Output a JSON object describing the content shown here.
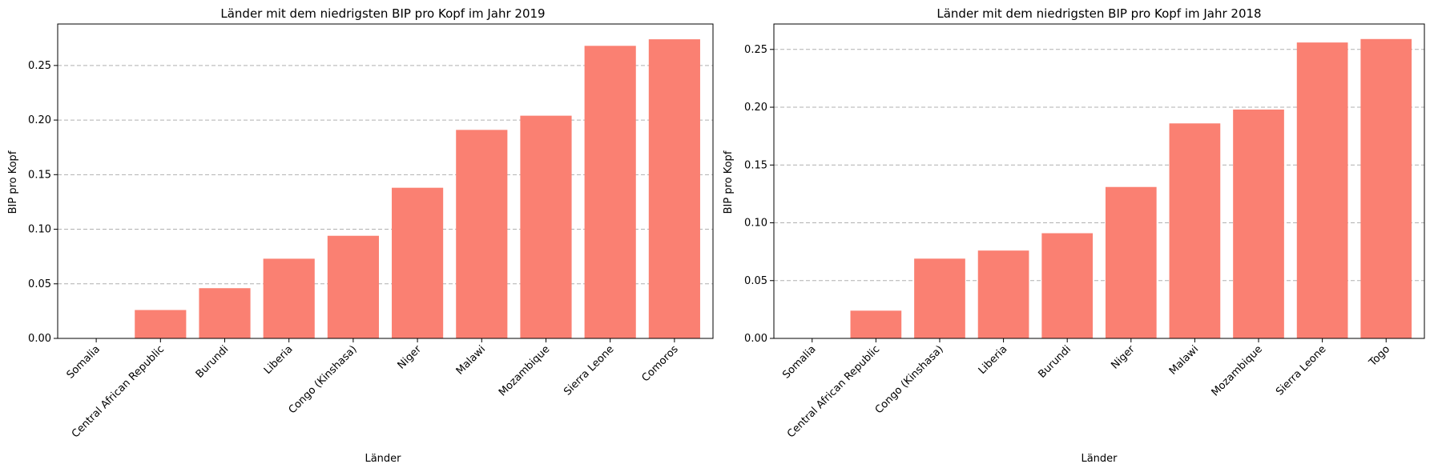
{
  "colors": {
    "bar": "#fa8072",
    "grid": "#b0b0b0",
    "axis": "#000000"
  },
  "chart_data": [
    {
      "type": "bar",
      "title": "Länder mit dem niedrigsten BIP pro Kopf im Jahr 2019",
      "xlabel": "Länder",
      "ylabel": "BIP pro Kopf",
      "categories": [
        "Somalia",
        "Central African Republic",
        "Burundi",
        "Liberia",
        "Congo (Kinshasa)",
        "Niger",
        "Malawi",
        "Mozambique",
        "Sierra Leone",
        "Comoros"
      ],
      "values": [
        0.0,
        0.026,
        0.046,
        0.073,
        0.094,
        0.138,
        0.191,
        0.204,
        0.268,
        0.274
      ],
      "ylim": [
        0,
        0.288
      ],
      "yticks": [
        0.0,
        0.05,
        0.1,
        0.15,
        0.2,
        0.25
      ],
      "ytick_labels": [
        "0.00",
        "0.05",
        "0.10",
        "0.15",
        "0.20",
        "0.25"
      ],
      "grid": "y-dashed"
    },
    {
      "type": "bar",
      "title": "Länder mit dem niedrigsten BIP pro Kopf im Jahr 2018",
      "xlabel": "Länder",
      "ylabel": "BIP pro Kopf",
      "categories": [
        "Somalia",
        "Central African Republic",
        "Congo (Kinshasa)",
        "Liberia",
        "Burundi",
        "Niger",
        "Malawi",
        "Mozambique",
        "Sierra Leone",
        "Togo"
      ],
      "values": [
        0.0,
        0.024,
        0.069,
        0.076,
        0.091,
        0.131,
        0.186,
        0.198,
        0.256,
        0.259
      ],
      "ylim": [
        0,
        0.272
      ],
      "yticks": [
        0.0,
        0.05,
        0.1,
        0.15,
        0.2,
        0.25
      ],
      "ytick_labels": [
        "0.00",
        "0.05",
        "0.10",
        "0.15",
        "0.20",
        "0.25"
      ],
      "grid": "y-dashed"
    }
  ]
}
